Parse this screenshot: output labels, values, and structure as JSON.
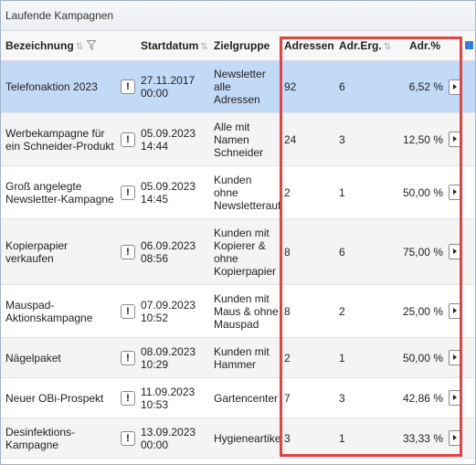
{
  "panel": {
    "title": "Laufende Kampagnen"
  },
  "columns": {
    "bezeichnung": "Bezeichnung",
    "startdatum": "Startdatum",
    "zielgruppe": "Zielgruppe",
    "adressen": "Adressen",
    "adr_erg": "Adr.Erg.",
    "adr_pct": "Adr.%"
  },
  "rows": [
    {
      "name": "Telefonaktion 2023",
      "warn": "!",
      "date": "27.11.2017\n00:00",
      "ziel": "Newsletter\nalle\nAdressen",
      "addr": "92",
      "adrerg": "6",
      "pct": "6,52 %"
    },
    {
      "name": "Werbekampagne für ein Schneider-Produkt",
      "warn": "!",
      "date": "05.09.2023\n14:44",
      "ziel": "Alle mit\nNamen\nSchneider",
      "addr": "24",
      "adrerg": "3",
      "pct": "12,50 %"
    },
    {
      "name": "Groß angelegte Newsletter-Kampagne",
      "warn": "!",
      "date": "05.09.2023\n14:45",
      "ziel": "Kunden\nohne\nNewsletterauf",
      "addr": "2",
      "adrerg": "1",
      "pct": "50,00 %"
    },
    {
      "name": "Kopierpapier verkaufen",
      "warn": "!",
      "date": "06.09.2023\n08:56",
      "ziel": "Kunden mit\nKopierer &\nohne\nKopierpapier",
      "addr": "8",
      "adrerg": "6",
      "pct": "75,00 %"
    },
    {
      "name": "Mauspad-Aktionskampagne",
      "warn": "!",
      "date": "07.09.2023\n10:52",
      "ziel": "Kunden mit\nMaus & ohne\nMauspad",
      "addr": "8",
      "adrerg": "2",
      "pct": "25,00 %"
    },
    {
      "name": "Nägelpaket",
      "warn": "!",
      "date": "08.09.2023\n10:29",
      "ziel": "Kunden mit\nHammer",
      "addr": "2",
      "adrerg": "1",
      "pct": "50,00 %"
    },
    {
      "name": "Neuer OBi-Prospekt",
      "warn": "!",
      "date": "11.09.2023\n10:53",
      "ziel": "Gartencenter",
      "addr": "7",
      "adrerg": "3",
      "pct": "42,86 %"
    },
    {
      "name": "Desinfektions-Kampagne",
      "warn": "!",
      "date": "13.09.2023\n00:00",
      "ziel": "Hygieneartikel",
      "addr": "3",
      "adrerg": "1",
      "pct": "33,33 %"
    }
  ],
  "selected_row": 0,
  "colors": {
    "selected_row": "#c3daf7",
    "alt_row": "#f4f4f4",
    "highlight_border": "#e04545"
  },
  "icons": {
    "sort": "sort-arrows-icon",
    "filter": "filter-funnel-icon",
    "warning": "exclamation-icon",
    "action": "play-arrow-icon",
    "export": "export-icon"
  }
}
